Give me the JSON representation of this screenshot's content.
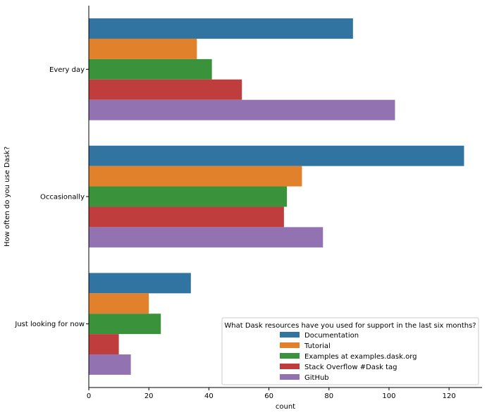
{
  "chart_data": {
    "type": "bar",
    "orientation": "horizontal",
    "categories": [
      "Every day",
      "Occasionally",
      "Just looking for now"
    ],
    "series": [
      {
        "name": "Documentation",
        "color": "#3274a1",
        "values": [
          88,
          125,
          34
        ]
      },
      {
        "name": "Tutorial",
        "color": "#e1812c",
        "values": [
          36,
          71,
          20
        ]
      },
      {
        "name": "Examples at examples.dask.org",
        "color": "#3a923a",
        "values": [
          41,
          66,
          24
        ]
      },
      {
        "name": "Stack Overflow #Dask tag",
        "color": "#c03d3e",
        "values": [
          51,
          65,
          10
        ]
      },
      {
        "name": "GitHub",
        "color": "#9372b2",
        "values": [
          102,
          78,
          14
        ]
      }
    ],
    "xlabel": "count",
    "ylabel": "How often do you use Dask?",
    "xlim": [
      0,
      131
    ],
    "xticks": [
      0,
      20,
      40,
      60,
      80,
      100,
      120
    ],
    "grid": false,
    "legend": {
      "title": "What Dask resources have you used for support in the last six months?",
      "placement": "lower-right"
    }
  }
}
